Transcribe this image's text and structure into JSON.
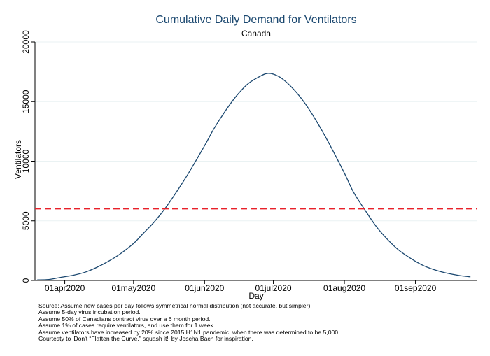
{
  "chart_data": {
    "type": "line",
    "title": "Cumulative Daily Demand for Ventilators",
    "subtitle": "Canada",
    "xlabel": "Day",
    "ylabel": "Ventilators",
    "xlim": [
      "2020-03-19",
      "2020-09-28"
    ],
    "ylim": [
      0,
      20000
    ],
    "x_ticks": [
      "2020-04-01",
      "2020-05-01",
      "2020-06-01",
      "2020-07-01",
      "2020-08-01",
      "2020-09-01"
    ],
    "x_tick_labels": [
      "01apr2020",
      "01may2020",
      "01jun2020",
      "01jul2020",
      "01aug2020",
      "01sep2020"
    ],
    "y_ticks": [
      0,
      5000,
      10000,
      15000,
      20000
    ],
    "y_tick_labels": [
      "0",
      "5000",
      "10000",
      "15000",
      "20000"
    ],
    "grid": "horizontal",
    "series": [
      {
        "color": "#1a476f",
        "style": "solid",
        "x": [
          "2020-03-20",
          "2020-03-25",
          "2020-03-30",
          "2020-04-05",
          "2020-04-10",
          "2020-04-15",
          "2020-04-20",
          "2020-04-25",
          "2020-05-01",
          "2020-05-05",
          "2020-05-10",
          "2020-05-15",
          "2020-05-20",
          "2020-05-25",
          "2020-06-01",
          "2020-06-05",
          "2020-06-10",
          "2020-06-15",
          "2020-06-20",
          "2020-06-25",
          "2020-06-28",
          "2020-07-01",
          "2020-07-05",
          "2020-07-10",
          "2020-07-15",
          "2020-07-20",
          "2020-07-25",
          "2020-08-01",
          "2020-08-05",
          "2020-08-10",
          "2020-08-15",
          "2020-08-20",
          "2020-08-25",
          "2020-09-01",
          "2020-09-05",
          "2020-09-10",
          "2020-09-15",
          "2020-09-20",
          "2020-09-25"
        ],
        "values": [
          50,
          80,
          250,
          450,
          700,
          1100,
          1600,
          2200,
          3100,
          3900,
          4900,
          6100,
          7500,
          9000,
          11300,
          12700,
          14200,
          15500,
          16500,
          17100,
          17350,
          17300,
          16900,
          16000,
          14800,
          13300,
          11600,
          9000,
          7400,
          5900,
          4500,
          3400,
          2500,
          1600,
          1200,
          850,
          600,
          420,
          300
        ]
      },
      {
        "color": "#e8212a",
        "style": "dashed",
        "x": [
          "2020-03-19",
          "2020-09-28"
        ],
        "values": [
          6000,
          6000
        ]
      }
    ]
  },
  "notes": [
    "Source: Assume new cases per day follows symmetrical normal distribution (not accurate, but simpler).",
    "Assume 5-day virus incubation period.",
    "Assume 50% of Canadians contract virus over a 6 month period.",
    "Assume 1% of cases require ventilators, and use them for 1 week.",
    "Assume ventilators have increased by 20% since 2015 H1N1 pandemic, when there was determined to be 5,000.",
    "Courtesty to 'Don't “Flatten the Curve,” squash it!' by Joscha Bach for inspiration."
  ],
  "colors": {
    "background": "#ffffff",
    "gridline": "#eaf2f3",
    "axis": "#000000",
    "title": "#1a476f"
  }
}
